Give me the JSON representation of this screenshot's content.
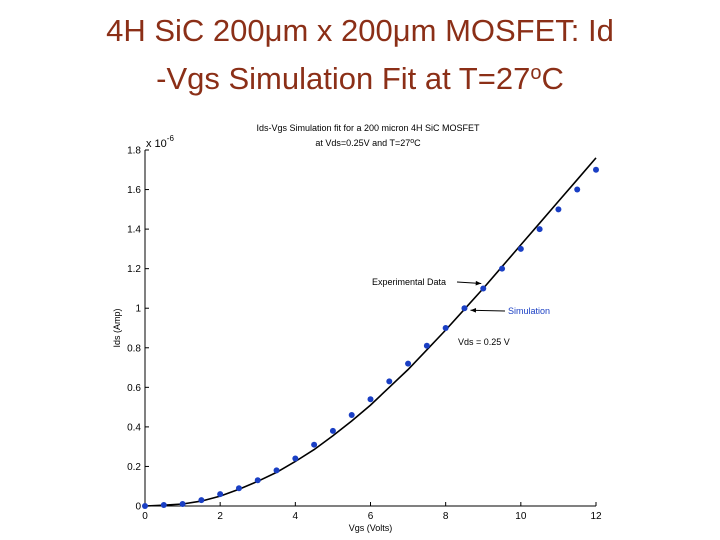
{
  "slide": {
    "title_line1": "4H SiC 200μm x 200μm MOSFET: Id",
    "title_line2_a": "-Vgs Simulation Fit at T=27",
    "title_line2_sup": "o",
    "title_line2_b": "C"
  },
  "chart_data": {
    "type": "line",
    "title_line1": "Ids-Vgs Simulation fit for a 200 micron 4H SiC MOSFET",
    "title_line2_a": "at Vds=0.25V  and  T=27",
    "title_line2_sup": "o",
    "title_line2_b": "C",
    "xlabel": "Vgs (Volts)",
    "ylabel": "Ids (Amp)",
    "y_multiplier": "x 10",
    "y_multiplier_exp": "-6",
    "xlim": [
      0,
      12
    ],
    "ylim": [
      0,
      1.8
    ],
    "x_ticks": [
      0,
      2,
      4,
      6,
      8,
      10,
      12
    ],
    "y_ticks": [
      0,
      0.2,
      0.4,
      0.6,
      0.8,
      1,
      1.2,
      1.4,
      1.6,
      1.8
    ],
    "x_tick_labels": [
      "0",
      "2",
      "4",
      "6",
      "8",
      "10",
      "12"
    ],
    "y_tick_labels": [
      "0",
      "0.2",
      "0.4",
      "0.6",
      "0.8",
      "1",
      "1.2",
      "1.4",
      "1.6",
      "1.8"
    ],
    "grid": false,
    "series": [
      {
        "name": "Experimental Data",
        "style": "markers",
        "color": "#1a3fc4",
        "x": [
          0,
          0.5,
          1,
          1.5,
          2,
          2.5,
          3,
          3.5,
          4,
          4.5,
          5,
          5.5,
          6,
          6.5,
          7,
          7.5,
          8,
          8.5,
          9,
          9.5,
          10,
          10.5,
          11,
          11.5,
          12
        ],
        "y": [
          0.0,
          0.005,
          0.01,
          0.03,
          0.06,
          0.09,
          0.13,
          0.18,
          0.24,
          0.31,
          0.38,
          0.46,
          0.54,
          0.63,
          0.72,
          0.81,
          0.9,
          1.0,
          1.1,
          1.2,
          1.3,
          1.4,
          1.5,
          1.6,
          1.7
        ]
      },
      {
        "name": "Simulation",
        "style": "line",
        "color": "#000000",
        "x": [
          0,
          0.5,
          1,
          1.5,
          2,
          2.5,
          3,
          3.5,
          4,
          4.5,
          5,
          5.5,
          6,
          6.5,
          7,
          7.5,
          8,
          8.5,
          9,
          9.5,
          10,
          10.5,
          11,
          11.5,
          12
        ],
        "y": [
          0.0,
          0.004,
          0.01,
          0.025,
          0.05,
          0.085,
          0.125,
          0.17,
          0.225,
          0.285,
          0.355,
          0.43,
          0.51,
          0.6,
          0.69,
          0.79,
          0.89,
          0.995,
          1.1,
          1.21,
          1.32,
          1.43,
          1.54,
          1.65,
          1.76
        ]
      }
    ],
    "annotations": [
      {
        "text": "Experimental Data",
        "arrow_to": [
          9.0,
          1.13
        ]
      },
      {
        "text": "Simulation",
        "arrow_to": [
          8.5,
          1.0
        ]
      },
      {
        "text": "Vds = 0.25 V",
        "arrow_to": null
      }
    ],
    "colors": {
      "marker": "#1a3fc4",
      "line": "#000000",
      "axes": "#000000"
    }
  }
}
